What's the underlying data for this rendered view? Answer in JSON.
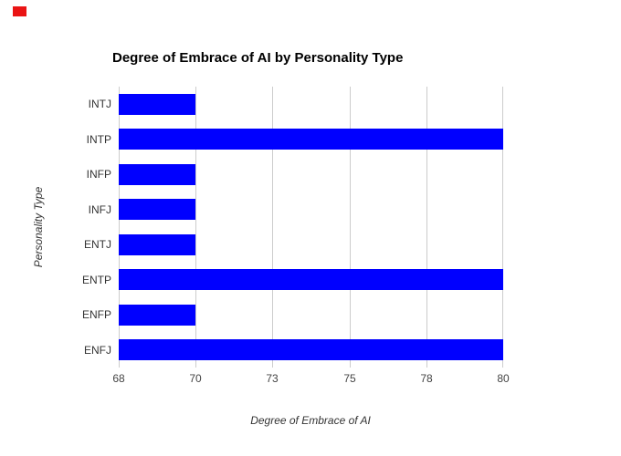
{
  "page": {
    "background": "#ffffff"
  },
  "marker": {
    "name": "red-marker",
    "color": "#ea1414"
  },
  "chart_data": {
    "type": "bar",
    "orientation": "horizontal",
    "title": "Degree of Embrace of AI by Personality Type",
    "xlabel": "Degree of Embrace of AI",
    "ylabel": "Personality Type",
    "categories": [
      "INTJ",
      "INTP",
      "INFP",
      "INFJ",
      "ENTJ",
      "ENTP",
      "ENFP",
      "ENFJ"
    ],
    "values": [
      70,
      80,
      70,
      70,
      70,
      80,
      70,
      80
    ],
    "xlim": [
      68,
      80
    ],
    "xticks": [
      68,
      70,
      73,
      75,
      78,
      80
    ],
    "grid": true,
    "legend": "none",
    "bar_color": "#0000ff",
    "gridline_color": "#cccccc",
    "title_color": "#000000",
    "category_label_color": "#333333",
    "tick_label_color": "#444444",
    "axis_title_color": "#333333"
  }
}
